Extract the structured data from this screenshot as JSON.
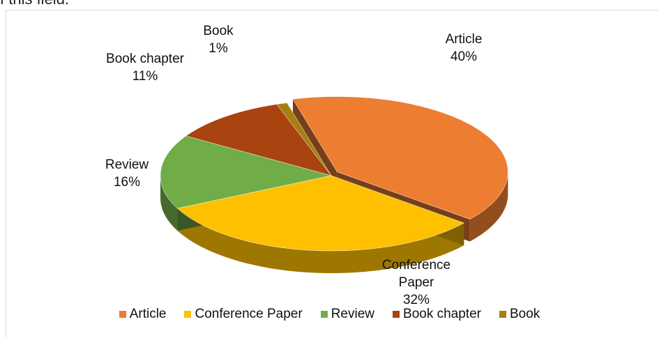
{
  "caption_fragment": "f this field.",
  "chart_data": {
    "type": "pie",
    "categories": [
      "Article",
      "Conference Paper",
      "Review",
      "Book chapter",
      "Book"
    ],
    "values": [
      40,
      32,
      16,
      11,
      1
    ],
    "value_labels": [
      "40%",
      "32%",
      "16%",
      "11%",
      "1%"
    ],
    "colors": [
      "#ed7d31",
      "#ffc000",
      "#70ad47",
      "#a9430f",
      "#a57f10"
    ],
    "legend": "bottom"
  }
}
